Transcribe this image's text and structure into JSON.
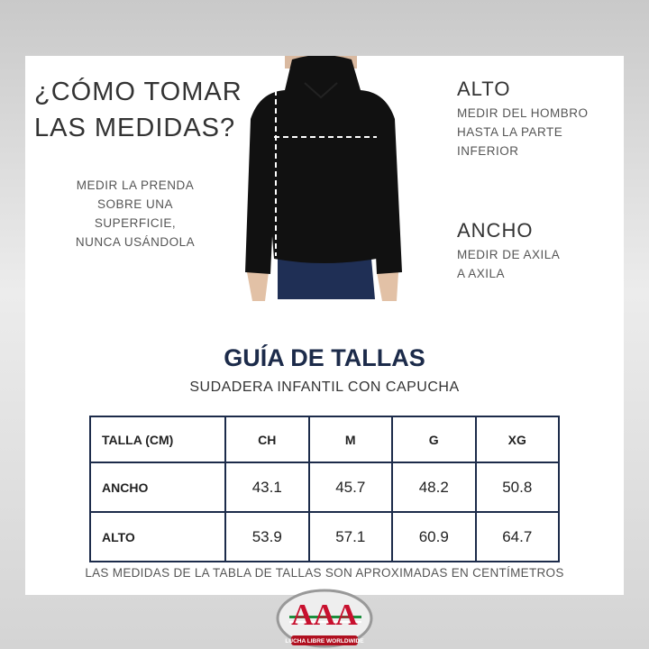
{
  "heading": {
    "line1": "¿CÓMO TOMAR",
    "line2": "LAS MEDIDAS?"
  },
  "instruction": [
    "MEDIR LA PRENDA",
    "SOBRE UNA",
    "SUPERFICIE,",
    "NUNCA USÁNDOLA"
  ],
  "alto": {
    "label": "ALTO",
    "desc": [
      "MEDIR DEL HOMBRO",
      "HASTA LA PARTE",
      "INFERIOR"
    ]
  },
  "ancho": {
    "label": "ANCHO",
    "desc": [
      "MEDIR DE AXILA",
      "A AXILA"
    ]
  },
  "guide": {
    "title": "GUÍA DE TALLAS",
    "subtitle": "SUDADERA INFANTIL CON CAPUCHA"
  },
  "table": {
    "headers": [
      "TALLA (CM)",
      "CH",
      "M",
      "G",
      "XG"
    ],
    "rows": [
      {
        "label": "ANCHO",
        "values": [
          "43.1",
          "45.7",
          "48.2",
          "50.8"
        ]
      },
      {
        "label": "ALTO",
        "values": [
          "53.9",
          "57.1",
          "60.9",
          "64.7"
        ]
      }
    ]
  },
  "note": "LAS MEDIDAS DE LA TABLA DE TALLAS SON APROXIMADAS EN CENTÍMETROS",
  "logo": {
    "text": "AAA",
    "tagline": "LUCHA LIBRE WORLDWIDE"
  },
  "colors": {
    "navy": "#1c2b4a",
    "logo_red": "#c8102e",
    "logo_green": "#1a8f3c"
  }
}
